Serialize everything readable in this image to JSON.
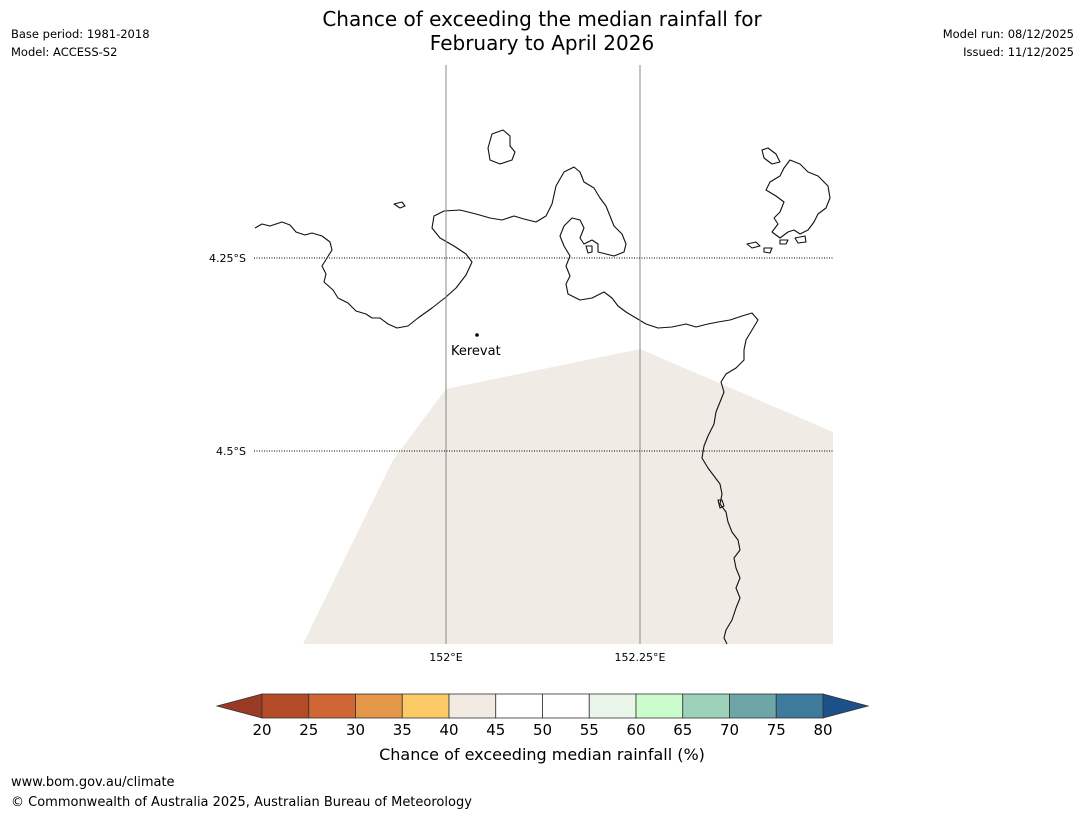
{
  "title": {
    "line1": "Chance of exceeding the median rainfall for",
    "line2": "February to April 2026"
  },
  "meta": {
    "base_period": "Base period: 1981-2018",
    "model": "Model: ACCESS-S2",
    "model_run": "Model run: 08/12/2025",
    "issued": "Issued: 11/12/2025"
  },
  "map": {
    "lat_labels": [
      "4.25°S",
      "4.5°S"
    ],
    "lon_labels": [
      "152°E",
      "152.25°E"
    ],
    "place": "Kerevat",
    "forecast_region_category": "40-45"
  },
  "colorbar": {
    "label": "Chance of exceeding median rainfall (%)",
    "ticks": [
      "20",
      "25",
      "30",
      "35",
      "40",
      "45",
      "50",
      "55",
      "60",
      "65",
      "70",
      "75",
      "80"
    ],
    "under_color": "#9a3a24",
    "over_color": "#1b5088",
    "colors": [
      "#b34a28",
      "#cf6633",
      "#e39748",
      "#fccb67",
      "#f1ebe4",
      "#ffffff",
      "#ffffff",
      "#eaf6ea",
      "#cbfccb",
      "#9dd1b9",
      "#6ea5a6",
      "#3d7a9c"
    ]
  },
  "footer": {
    "url": "www.bom.gov.au/climate",
    "copyright": "© Commonwealth of Australia 2025, Australian Bureau of Meteorology"
  }
}
